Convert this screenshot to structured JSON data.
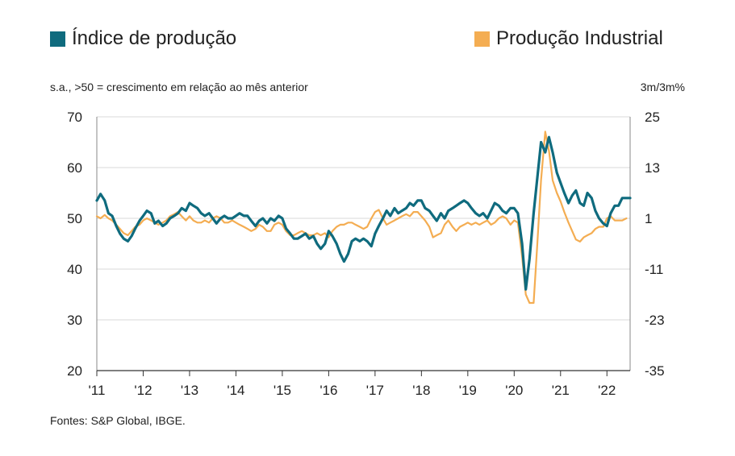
{
  "chart_data": {
    "type": "line",
    "title": "",
    "left_axis_note": "s.a., >50 = crescimento em relação ao mês anterior",
    "right_axis_note": "3m/3m%",
    "source": "Fontes: S&P Global, IBGE.",
    "x_ticks": [
      "'11",
      "'12",
      "'13",
      "'14",
      "'15",
      "'16",
      "'17",
      "'18",
      "'19",
      "'20",
      "'21",
      "'22"
    ],
    "x_range": [
      2011.0,
      2022.5
    ],
    "y_left": {
      "min": 20,
      "max": 70,
      "ticks": [
        "70",
        "60",
        "50",
        "40",
        "30",
        "20"
      ]
    },
    "y_right": {
      "min": -35,
      "max": 25,
      "ticks": [
        "25",
        "13",
        "1",
        "-11",
        "-23",
        "-35"
      ]
    },
    "grid": true,
    "series": [
      {
        "name": "Índice de produção",
        "axis": "left",
        "color": "#0f6b7e",
        "points": [
          [
            2011.0,
            53.5
          ],
          [
            2011.08,
            54.8
          ],
          [
            2011.17,
            53.5
          ],
          [
            2011.25,
            51.0
          ],
          [
            2011.33,
            50.5
          ],
          [
            2011.42,
            48.5
          ],
          [
            2011.5,
            47.0
          ],
          [
            2011.58,
            46.0
          ],
          [
            2011.67,
            45.5
          ],
          [
            2011.75,
            46.5
          ],
          [
            2011.83,
            48.0
          ],
          [
            2011.92,
            49.5
          ],
          [
            2012.0,
            50.5
          ],
          [
            2012.08,
            51.5
          ],
          [
            2012.17,
            51.0
          ],
          [
            2012.25,
            49.0
          ],
          [
            2012.33,
            49.5
          ],
          [
            2012.42,
            48.5
          ],
          [
            2012.5,
            49.0
          ],
          [
            2012.58,
            50.0
          ],
          [
            2012.67,
            50.5
          ],
          [
            2012.75,
            51.0
          ],
          [
            2012.83,
            52.0
          ],
          [
            2012.92,
            51.5
          ],
          [
            2013.0,
            53.0
          ],
          [
            2013.08,
            52.5
          ],
          [
            2013.17,
            52.0
          ],
          [
            2013.25,
            51.0
          ],
          [
            2013.33,
            50.5
          ],
          [
            2013.42,
            51.0
          ],
          [
            2013.5,
            50.0
          ],
          [
            2013.58,
            49.0
          ],
          [
            2013.67,
            50.0
          ],
          [
            2013.75,
            50.5
          ],
          [
            2013.83,
            50.0
          ],
          [
            2013.92,
            50.0
          ],
          [
            2014.0,
            50.5
          ],
          [
            2014.08,
            51.0
          ],
          [
            2014.17,
            50.5
          ],
          [
            2014.25,
            50.5
          ],
          [
            2014.33,
            49.5
          ],
          [
            2014.42,
            48.5
          ],
          [
            2014.5,
            49.5
          ],
          [
            2014.58,
            50.0
          ],
          [
            2014.67,
            49.0
          ],
          [
            2014.75,
            50.0
          ],
          [
            2014.83,
            49.5
          ],
          [
            2014.92,
            50.5
          ],
          [
            2015.0,
            50.0
          ],
          [
            2015.08,
            48.0
          ],
          [
            2015.17,
            47.0
          ],
          [
            2015.25,
            46.0
          ],
          [
            2015.33,
            46.0
          ],
          [
            2015.42,
            46.5
          ],
          [
            2015.5,
            47.0
          ],
          [
            2015.58,
            46.0
          ],
          [
            2015.67,
            46.5
          ],
          [
            2015.75,
            45.0
          ],
          [
            2015.83,
            44.0
          ],
          [
            2015.92,
            45.0
          ],
          [
            2016.0,
            47.5
          ],
          [
            2016.08,
            46.5
          ],
          [
            2016.17,
            45.0
          ],
          [
            2016.25,
            43.0
          ],
          [
            2016.33,
            41.5
          ],
          [
            2016.42,
            43.0
          ],
          [
            2016.5,
            45.5
          ],
          [
            2016.58,
            46.0
          ],
          [
            2016.67,
            45.5
          ],
          [
            2016.75,
            46.0
          ],
          [
            2016.83,
            45.5
          ],
          [
            2016.92,
            44.5
          ],
          [
            2017.0,
            47.0
          ],
          [
            2017.08,
            48.5
          ],
          [
            2017.17,
            50.0
          ],
          [
            2017.25,
            51.5
          ],
          [
            2017.33,
            50.5
          ],
          [
            2017.42,
            52.0
          ],
          [
            2017.5,
            51.0
          ],
          [
            2017.58,
            51.5
          ],
          [
            2017.67,
            52.0
          ],
          [
            2017.75,
            53.0
          ],
          [
            2017.83,
            52.5
          ],
          [
            2017.92,
            53.5
          ],
          [
            2018.0,
            53.5
          ],
          [
            2018.08,
            52.0
          ],
          [
            2018.17,
            51.5
          ],
          [
            2018.25,
            50.5
          ],
          [
            2018.33,
            49.5
          ],
          [
            2018.42,
            51.0
          ],
          [
            2018.5,
            50.0
          ],
          [
            2018.58,
            51.5
          ],
          [
            2018.67,
            52.0
          ],
          [
            2018.75,
            52.5
          ],
          [
            2018.83,
            53.0
          ],
          [
            2018.92,
            53.5
          ],
          [
            2019.0,
            53.0
          ],
          [
            2019.08,
            52.0
          ],
          [
            2019.17,
            51.0
          ],
          [
            2019.25,
            50.5
          ],
          [
            2019.33,
            51.0
          ],
          [
            2019.42,
            50.0
          ],
          [
            2019.5,
            51.5
          ],
          [
            2019.58,
            53.0
          ],
          [
            2019.67,
            52.5
          ],
          [
            2019.75,
            51.5
          ],
          [
            2019.83,
            51.0
          ],
          [
            2019.92,
            52.0
          ],
          [
            2020.0,
            52.0
          ],
          [
            2020.08,
            51.0
          ],
          [
            2020.17,
            45.0
          ],
          [
            2020.25,
            36.0
          ],
          [
            2020.33,
            42.0
          ],
          [
            2020.42,
            51.0
          ],
          [
            2020.5,
            58.0
          ],
          [
            2020.58,
            65.0
          ],
          [
            2020.67,
            63.0
          ],
          [
            2020.75,
            66.0
          ],
          [
            2020.83,
            63.0
          ],
          [
            2020.92,
            59.0
          ],
          [
            2021.0,
            57.0
          ],
          [
            2021.08,
            55.0
          ],
          [
            2021.17,
            53.0
          ],
          [
            2021.25,
            54.5
          ],
          [
            2021.33,
            55.5
          ],
          [
            2021.42,
            53.0
          ],
          [
            2021.5,
            52.5
          ],
          [
            2021.58,
            55.0
          ],
          [
            2021.67,
            54.0
          ],
          [
            2021.75,
            51.5
          ],
          [
            2021.83,
            50.0
          ],
          [
            2021.92,
            49.0
          ],
          [
            2022.0,
            48.5
          ],
          [
            2022.08,
            51.0
          ],
          [
            2022.17,
            52.5
          ],
          [
            2022.25,
            52.5
          ],
          [
            2022.33,
            54.0
          ],
          [
            2022.42,
            54.0
          ],
          [
            2022.5,
            54.0
          ]
        ]
      },
      {
        "name": "Produção Industrial",
        "axis": "right",
        "color": "#f4ad52",
        "points": [
          [
            2011.0,
            1.5
          ],
          [
            2011.08,
            1.0
          ],
          [
            2011.17,
            1.8
          ],
          [
            2011.25,
            1.0
          ],
          [
            2011.33,
            0.5
          ],
          [
            2011.42,
            -0.5
          ],
          [
            2011.5,
            -1.5
          ],
          [
            2011.58,
            -2.5
          ],
          [
            2011.67,
            -3.0
          ],
          [
            2011.75,
            -2.0
          ],
          [
            2011.83,
            -1.0
          ],
          [
            2011.92,
            -0.5
          ],
          [
            2012.0,
            0.5
          ],
          [
            2012.08,
            1.0
          ],
          [
            2012.17,
            0.5
          ],
          [
            2012.25,
            0.0
          ],
          [
            2012.33,
            -0.5
          ],
          [
            2012.42,
            0.0
          ],
          [
            2012.5,
            0.5
          ],
          [
            2012.58,
            1.5
          ],
          [
            2012.67,
            2.0
          ],
          [
            2012.75,
            2.5
          ],
          [
            2012.83,
            1.5
          ],
          [
            2012.92,
            0.5
          ],
          [
            2013.0,
            1.5
          ],
          [
            2013.08,
            0.5
          ],
          [
            2013.17,
            0.0
          ],
          [
            2013.25,
            0.0
          ],
          [
            2013.33,
            0.5
          ],
          [
            2013.42,
            0.0
          ],
          [
            2013.5,
            1.0
          ],
          [
            2013.58,
            1.5
          ],
          [
            2013.67,
            1.0
          ],
          [
            2013.75,
            0.0
          ],
          [
            2013.83,
            0.0
          ],
          [
            2013.92,
            0.5
          ],
          [
            2014.0,
            0.0
          ],
          [
            2014.08,
            -0.5
          ],
          [
            2014.17,
            -1.0
          ],
          [
            2014.25,
            -1.5
          ],
          [
            2014.33,
            -2.0
          ],
          [
            2014.42,
            -1.5
          ],
          [
            2014.5,
            -0.5
          ],
          [
            2014.58,
            -1.0
          ],
          [
            2014.67,
            -2.0
          ],
          [
            2014.75,
            -2.0
          ],
          [
            2014.83,
            -0.5
          ],
          [
            2014.92,
            0.0
          ],
          [
            2015.0,
            -0.5
          ],
          [
            2015.08,
            -2.0
          ],
          [
            2015.17,
            -3.0
          ],
          [
            2015.25,
            -3.0
          ],
          [
            2015.33,
            -2.5
          ],
          [
            2015.42,
            -2.0
          ],
          [
            2015.5,
            -2.5
          ],
          [
            2015.58,
            -3.0
          ],
          [
            2015.67,
            -3.0
          ],
          [
            2015.75,
            -2.5
          ],
          [
            2015.83,
            -3.0
          ],
          [
            2015.92,
            -2.5
          ],
          [
            2016.0,
            -3.5
          ],
          [
            2016.08,
            -2.0
          ],
          [
            2016.17,
            -1.0
          ],
          [
            2016.25,
            -0.5
          ],
          [
            2016.33,
            -0.5
          ],
          [
            2016.42,
            0.0
          ],
          [
            2016.5,
            0.0
          ],
          [
            2016.58,
            -0.5
          ],
          [
            2016.67,
            -1.0
          ],
          [
            2016.75,
            -1.5
          ],
          [
            2016.83,
            -1.0
          ],
          [
            2016.92,
            1.0
          ],
          [
            2017.0,
            2.5
          ],
          [
            2017.08,
            3.0
          ],
          [
            2017.17,
            1.0
          ],
          [
            2017.25,
            -0.5
          ],
          [
            2017.33,
            0.0
          ],
          [
            2017.42,
            0.5
          ],
          [
            2017.5,
            1.0
          ],
          [
            2017.58,
            1.5
          ],
          [
            2017.67,
            2.0
          ],
          [
            2017.75,
            1.5
          ],
          [
            2017.83,
            2.5
          ],
          [
            2017.92,
            2.5
          ],
          [
            2018.0,
            1.5
          ],
          [
            2018.08,
            0.5
          ],
          [
            2018.17,
            -1.0
          ],
          [
            2018.25,
            -3.5
          ],
          [
            2018.33,
            -3.0
          ],
          [
            2018.42,
            -2.5
          ],
          [
            2018.5,
            -0.5
          ],
          [
            2018.58,
            0.5
          ],
          [
            2018.67,
            -1.0
          ],
          [
            2018.75,
            -2.0
          ],
          [
            2018.83,
            -1.0
          ],
          [
            2018.92,
            -0.5
          ],
          [
            2019.0,
            0.0
          ],
          [
            2019.08,
            -0.5
          ],
          [
            2019.17,
            0.0
          ],
          [
            2019.25,
            -0.5
          ],
          [
            2019.33,
            0.0
          ],
          [
            2019.42,
            0.5
          ],
          [
            2019.5,
            -0.5
          ],
          [
            2019.58,
            0.0
          ],
          [
            2019.67,
            1.0
          ],
          [
            2019.75,
            1.5
          ],
          [
            2019.83,
            1.0
          ],
          [
            2019.92,
            -0.5
          ],
          [
            2020.0,
            0.5
          ],
          [
            2020.08,
            0.0
          ],
          [
            2020.17,
            -8.0
          ],
          [
            2020.25,
            -17.0
          ],
          [
            2020.33,
            -19.0
          ],
          [
            2020.42,
            -19.0
          ],
          [
            2020.5,
            -5.0
          ],
          [
            2020.58,
            10.0
          ],
          [
            2020.67,
            21.5
          ],
          [
            2020.75,
            17.0
          ],
          [
            2020.83,
            10.0
          ],
          [
            2020.92,
            7.0
          ],
          [
            2021.0,
            5.0
          ],
          [
            2021.08,
            2.5
          ],
          [
            2021.17,
            0.0
          ],
          [
            2021.25,
            -2.0
          ],
          [
            2021.33,
            -4.0
          ],
          [
            2021.42,
            -4.5
          ],
          [
            2021.5,
            -3.5
          ],
          [
            2021.58,
            -3.0
          ],
          [
            2021.67,
            -2.5
          ],
          [
            2021.75,
            -1.5
          ],
          [
            2021.83,
            -1.0
          ],
          [
            2021.92,
            -1.0
          ],
          [
            2022.0,
            1.0
          ],
          [
            2022.08,
            1.5
          ],
          [
            2022.17,
            0.5
          ],
          [
            2022.25,
            0.5
          ],
          [
            2022.33,
            0.5
          ],
          [
            2022.42,
            1.0
          ]
        ]
      }
    ]
  }
}
